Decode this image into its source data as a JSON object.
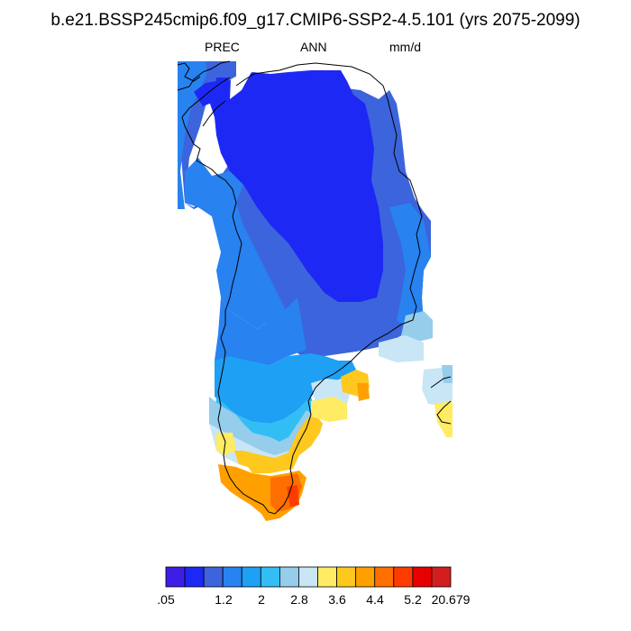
{
  "title": "b.e21.BSSP245cmip6.f09_g17.CMIP6-SSP2-4.5.101 (yrs 2075-2099)",
  "variable": "PREC",
  "period": "ANN",
  "units": "mm/d",
  "colorbar": {
    "colors": [
      "#3c1ee6",
      "#1e28f5",
      "#3c64dc",
      "#2882f0",
      "#1ea0f5",
      "#32bef5",
      "#96cdeb",
      "#c8e6f5",
      "#ffeb64",
      "#ffc81e",
      "#ffa000",
      "#ff6e00",
      "#ff3c00",
      "#e60000",
      "#d21e1e"
    ],
    "labels": [
      ".05",
      "1.2",
      "2",
      "2.8",
      "3.6",
      "4.4",
      "5.2",
      "20.679"
    ]
  },
  "legend_colors": {
    "c0": "#3c1ee6",
    "c1": "#1e28f5",
    "c2": "#3c64dc",
    "c3": "#2882f0",
    "c4": "#1ea0f5",
    "c5": "#32bef5",
    "c6": "#96cdeb",
    "c7": "#c8e6f5",
    "c8": "#ffeb64",
    "c9": "#ffc81e",
    "c10": "#ffa000",
    "c11": "#ff6e00",
    "c12": "#ff3c00",
    "c13": "#e60000"
  }
}
